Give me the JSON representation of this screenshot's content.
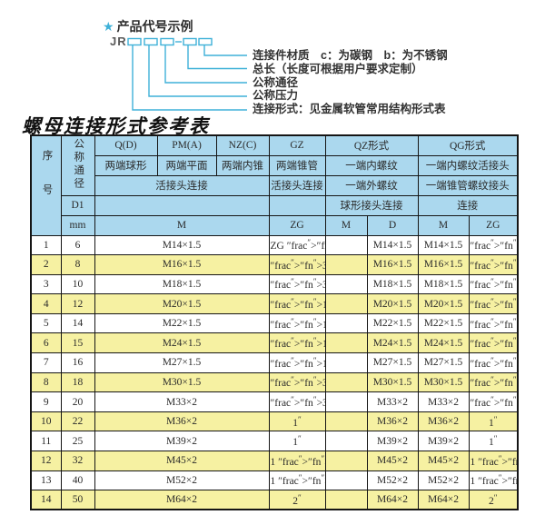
{
  "colors": {
    "accent": "#3fb1d8",
    "header_bg": "#abd8ee",
    "row_alt_bg": "#f6f1a2",
    "border": "#151515"
  },
  "diagram": {
    "star": "★",
    "title": "产品代号示例",
    "code_prefix": "JR",
    "labels": [
      "连接件材质　c：为碳钢　b：为不锈钢",
      "总长（长度可根据用户要求定制）",
      "公称通径",
      "公称压力",
      "连接形式：见金属软管常用结构形式表"
    ]
  },
  "table_title": "螺母连接形式参考表",
  "table": {
    "header": {
      "seq": "序号",
      "dn": "公称通径",
      "d1": "D1",
      "mm": "mm",
      "q_d": "Q(D)",
      "pm_a": "PM(A)",
      "nz_c": "NZ(C)",
      "gz": "GZ",
      "qz": "QZ形式",
      "qg": "QG形式",
      "q_d_desc": "两端球形",
      "pm_a_desc": "两端平面",
      "nz_c_desc": "两端内锥",
      "gz_desc": "两端锥管",
      "qz_desc1": "一端内螺纹",
      "qg_desc1": "一端内螺纹活接头",
      "union_conn": "活接头连接",
      "gz_conn": "活接头连接",
      "qz_desc2": "一端外螺纹",
      "qg_desc2": "一端锥管螺纹接头",
      "qz_conn": "球形接头连接",
      "qg_conn": "连接",
      "m": "M",
      "zg": "ZG",
      "qz_m": "M",
      "qz_d": "D",
      "qg_m": "M",
      "qg_zg": "ZG"
    },
    "rows": [
      {
        "no": "1",
        "dn": "6",
        "m": "M14×1.5",
        "gz": "ZG 1/4\"",
        "qz_m": "",
        "qz_d": "M14×1.5",
        "qg_m": "M14×1.5",
        "qg_zg": "1/4\""
      },
      {
        "no": "2",
        "dn": "8",
        "m": "M16×1.5",
        "gz": "3/8\"",
        "qz_m": "",
        "qz_d": "M16×1.5",
        "qg_m": "M16×1.5",
        "qg_zg": "3/8\""
      },
      {
        "no": "3",
        "dn": "10",
        "m": "M18×1.5",
        "gz": "3/8\"",
        "qz_m": "",
        "qz_d": "M18×1.5",
        "qg_m": "M18×1.5",
        "qg_zg": "3/8\""
      },
      {
        "no": "4",
        "dn": "12",
        "m": "M20×1.5",
        "gz": "1/2\"",
        "qz_m": "",
        "qz_d": "M20×1.5",
        "qg_m": "M20×1.5",
        "qg_zg": "1/2\""
      },
      {
        "no": "5",
        "dn": "14",
        "m": "M22×1.5",
        "gz": "1/2\"",
        "qz_m": "",
        "qz_d": "M22×1.5",
        "qg_m": "M22×1.5",
        "qg_zg": "1/2\""
      },
      {
        "no": "6",
        "dn": "15",
        "m": "M24×1.5",
        "gz": "1/2\"",
        "qz_m": "",
        "qz_d": "M24×1.5",
        "qg_m": "M24×1.5",
        "qg_zg": "1/2\""
      },
      {
        "no": "7",
        "dn": "16",
        "m": "M27×1.5",
        "gz": "1/2\"",
        "qz_m": "",
        "qz_d": "M27×1.5",
        "qg_m": "M27×1.5",
        "qg_zg": "1/2\""
      },
      {
        "no": "8",
        "dn": "18",
        "m": "M30×1.5",
        "gz": "3/4\"",
        "qz_m": "",
        "qz_d": "M30×1.5",
        "qg_m": "M30×1.5",
        "qg_zg": "3/4\""
      },
      {
        "no": "9",
        "dn": "20",
        "m": "M33×2",
        "gz": "3/4\"",
        "qz_m": "",
        "qz_d": "M33×2",
        "qg_m": "M33×2",
        "qg_zg": "3/4\""
      },
      {
        "no": "10",
        "dn": "22",
        "m": "M36×2",
        "gz": "1\"",
        "qz_m": "",
        "qz_d": "M36×2",
        "qg_m": "M36×2",
        "qg_zg": "1\""
      },
      {
        "no": "11",
        "dn": "25",
        "m": "M39×2",
        "gz": "1\"",
        "qz_m": "",
        "qz_d": "M39×2",
        "qg_m": "M39×2",
        "qg_zg": "1\""
      },
      {
        "no": "12",
        "dn": "32",
        "m": "M45×2",
        "gz": "1 1/4\"",
        "qz_m": "",
        "qz_d": "M45×2",
        "qg_m": "M45×2",
        "qg_zg": "1 1/4\""
      },
      {
        "no": "13",
        "dn": "40",
        "m": "M52×2",
        "gz": "1 1/2\"",
        "qz_m": "",
        "qz_d": "M52×2",
        "qg_m": "M52×2",
        "qg_zg": "1 1/2\""
      },
      {
        "no": "14",
        "dn": "50",
        "m": "M64×2",
        "gz": "2\"",
        "qz_m": "",
        "qz_d": "M64×2",
        "qg_m": "M64×2",
        "qg_zg": "2\""
      }
    ]
  }
}
